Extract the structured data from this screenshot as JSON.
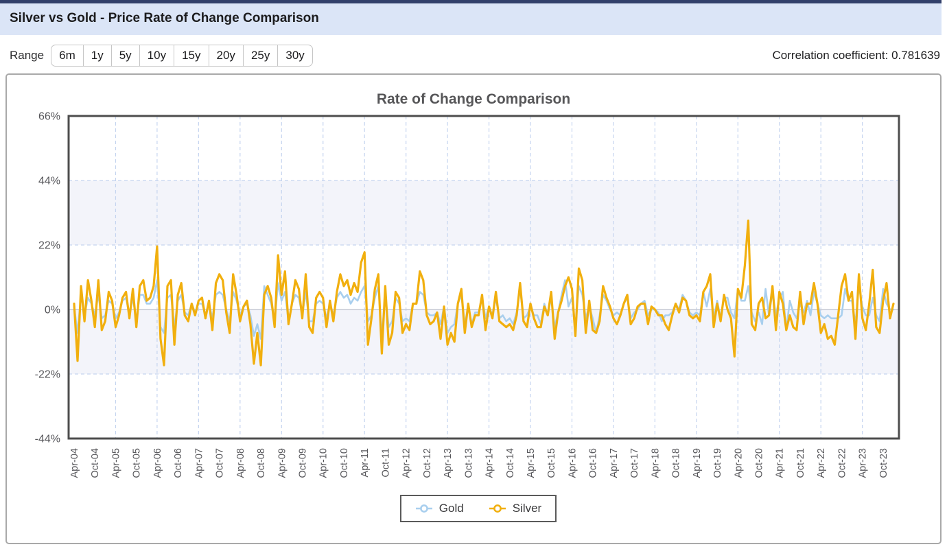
{
  "page": {
    "title": "Silver vs Gold - Price Rate of Change Comparison"
  },
  "controls": {
    "range_label": "Range",
    "range_options": [
      "6m",
      "1y",
      "5y",
      "10y",
      "15y",
      "20y",
      "25y",
      "30y"
    ],
    "correlation_label": "Correlation coefficient:",
    "correlation_value": "0.781639"
  },
  "theme": {
    "topbar": "#32406b",
    "header_bg": "#dbe5f7",
    "band_fill": "#f3f4fa",
    "grid_dashed": "#c5d4ef",
    "zero_line": "#c6cad3",
    "plot_border": "#4d4d4d",
    "axis_text": "#56565a"
  },
  "chart_data": {
    "type": "line",
    "title": "Rate of Change Comparison",
    "x_start": "2004-04",
    "x_interval": "monthly",
    "x_tick_every": 6,
    "x_tick_labels": [
      "Apr-04",
      "Oct-04",
      "Apr-05",
      "Oct-05",
      "Apr-06",
      "Oct-06",
      "Apr-07",
      "Oct-07",
      "Apr-08",
      "Oct-08",
      "Apr-09",
      "Oct-09",
      "Apr-10",
      "Oct-10",
      "Apr-11",
      "Oct-11",
      "Apr-12",
      "Oct-12",
      "Apr-13",
      "Oct-13",
      "Apr-14",
      "Oct-14",
      "Apr-15",
      "Oct-15",
      "Apr-16",
      "Oct-16",
      "Apr-17",
      "Oct-17",
      "Apr-18",
      "Oct-18",
      "Apr-19",
      "Oct-19",
      "Apr-20",
      "Oct-20",
      "Apr-21",
      "Oct-21",
      "Apr-22",
      "Oct-22",
      "Apr-23",
      "Oct-23"
    ],
    "ylim": [
      -44,
      66
    ],
    "yticks": [
      66,
      44,
      22,
      0,
      -22,
      -44
    ],
    "ytick_suffix": "%",
    "shaded_bands": [
      [
        44,
        22
      ],
      [
        0,
        -22
      ]
    ],
    "grid": "yearly vertical dashed, dashed horizontals at 44/22/-22, solid zero line",
    "legend_position": "bottom-center",
    "series": [
      {
        "name": "Gold",
        "color": "#a9cfee",
        "width": 2.6,
        "values": [
          1,
          -8,
          5,
          -2,
          4,
          2,
          -2,
          5,
          -3,
          -2,
          3,
          2,
          -3,
          -1,
          3,
          4,
          -2,
          4,
          -4,
          5,
          5,
          2,
          2,
          4,
          10,
          -6,
          -8,
          4,
          5,
          -6,
          3,
          5,
          -1,
          -2,
          2,
          -1,
          2,
          2,
          -2,
          2,
          -3,
          5,
          6,
          5,
          0,
          -4,
          6,
          3,
          -2,
          1,
          2,
          -2,
          -9,
          -5,
          -10,
          8,
          5,
          2,
          -4,
          9,
          3,
          6,
          -4,
          2,
          5,
          4,
          -2,
          6,
          -4,
          -4,
          2,
          3,
          2,
          -3,
          2,
          -2,
          4,
          6,
          4,
          5,
          2,
          4,
          3,
          6,
          8,
          -4,
          -2,
          4,
          8,
          -9,
          5,
          -6,
          -4,
          4,
          2,
          -4,
          -3,
          -4,
          2,
          2,
          6,
          5,
          -1,
          -2,
          -2,
          -1,
          -5,
          1,
          -8,
          -6,
          -5,
          2,
          5,
          -5,
          1,
          -5,
          -1,
          -1,
          4,
          -3,
          1,
          -2,
          4,
          -3,
          -2,
          -4,
          -3,
          -5,
          -1,
          7,
          -3,
          -2,
          1,
          -2,
          -2,
          -5,
          2,
          -2,
          4,
          -6,
          -1,
          5,
          10,
          1,
          4,
          -6,
          8,
          5,
          -3,
          1,
          -3,
          -8,
          -2,
          5,
          3,
          0,
          -2,
          -1,
          -2,
          2,
          4,
          -3,
          -1,
          0,
          2,
          3,
          -2,
          0,
          0,
          -1,
          -4,
          -2,
          -2,
          -1,
          2,
          0,
          5,
          3,
          -1,
          -2,
          -1,
          -2,
          6,
          1,
          7,
          -3,
          3,
          -3,
          4,
          4,
          -1,
          -3,
          7,
          3,
          3,
          8,
          -1,
          -4,
          -1,
          -5,
          7,
          -2,
          6,
          -2,
          4,
          6,
          -7,
          3,
          -1,
          -3,
          2,
          -1,
          3,
          -2,
          6,
          2,
          -2,
          -3,
          -2,
          -3,
          -3,
          -3,
          -2,
          7,
          3,
          3,
          -5,
          8,
          1,
          -2,
          -2,
          4,
          -2,
          -4,
          7,
          2,
          0,
          0
        ]
      },
      {
        "name": "Silver",
        "color": "#f1af0e",
        "width": 3.2,
        "values": [
          2,
          -17.5,
          8,
          -4,
          10,
          3,
          -6,
          10,
          -7,
          -4,
          6,
          3,
          -6,
          -2,
          4,
          6,
          -3,
          7,
          -6,
          8,
          10,
          3,
          4,
          8,
          21.5,
          -10,
          -19,
          8,
          10,
          -12,
          5,
          9,
          -2,
          -4,
          2,
          -2,
          3,
          4,
          -3,
          3,
          -7,
          9,
          12,
          10,
          -1,
          -8,
          12,
          5,
          -4,
          1,
          3,
          -5,
          -18.5,
          -8,
          -19,
          5,
          8,
          4,
          -6,
          18.5,
          5,
          13,
          -5,
          2,
          10,
          7,
          -3,
          12,
          -6,
          -8,
          4,
          6,
          4,
          -6,
          3,
          -4,
          6,
          12,
          8,
          10,
          5,
          9,
          6,
          16,
          19.5,
          -12,
          -3,
          7,
          12,
          -15,
          8,
          -12,
          -8,
          6,
          4,
          -8,
          -5,
          -7,
          2,
          2,
          13,
          10,
          -2,
          -5,
          -4,
          -1,
          -10,
          1,
          -12,
          -8,
          -11,
          2,
          7,
          -8,
          2,
          -6,
          -2,
          -2,
          5,
          -7,
          1,
          -3,
          6,
          -4,
          -5,
          -6,
          -5,
          -7,
          -2,
          9,
          -4,
          -6,
          2,
          -3,
          -6,
          -6,
          1,
          -2,
          6,
          -10,
          -1,
          3,
          8,
          11,
          7,
          -9,
          14,
          10,
          -8,
          3,
          -7,
          -8,
          -4,
          8,
          4,
          1,
          -3,
          -5,
          -2,
          2,
          5,
          -5,
          -3,
          1,
          2,
          2,
          -5,
          1,
          0,
          -2,
          -2,
          -5,
          -7,
          -2,
          2,
          -1,
          4,
          3,
          -2,
          -3,
          -2,
          -4,
          6,
          8,
          12,
          -6,
          2,
          -4,
          5,
          0,
          -3,
          -16,
          7,
          4,
          15,
          30.3,
          -5,
          -7,
          2,
          4,
          -3,
          -2,
          8,
          -7,
          6,
          2,
          -7,
          -2,
          -6,
          -7,
          6,
          -5,
          2,
          2,
          9,
          2,
          -8,
          -5,
          -10,
          -9,
          -12,
          -2,
          8,
          12,
          3,
          6,
          -10,
          12,
          -3,
          -7,
          2,
          13.5,
          -6,
          -8,
          3,
          9,
          -3,
          2
        ]
      }
    ]
  }
}
